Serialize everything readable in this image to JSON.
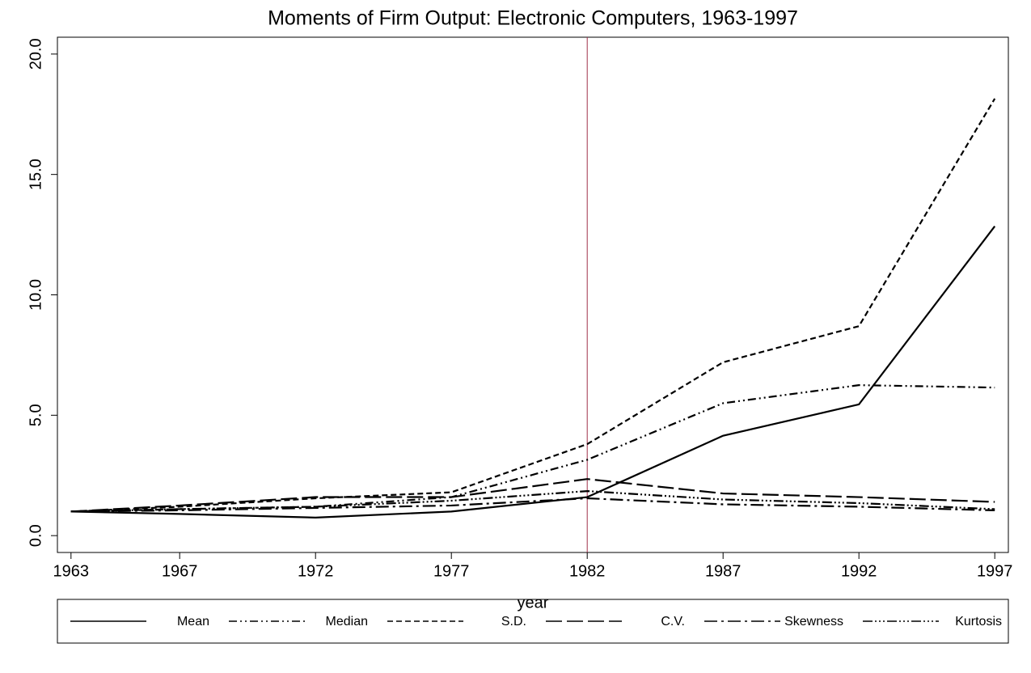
{
  "chart_data": {
    "type": "line",
    "title": "Moments of Firm Output: Electronic Computers, 1963-1997",
    "x_label": "year",
    "x": [
      1963,
      1967,
      1972,
      1977,
      1982,
      1987,
      1992,
      1997
    ],
    "xlim": [
      1962.5,
      1997.5
    ],
    "xticks": [
      1963,
      1967,
      1972,
      1977,
      1982,
      1987,
      1992,
      1997
    ],
    "ylim": [
      -0.7,
      20.7
    ],
    "yticks": [
      {
        "value": 0,
        "label": "0.0"
      },
      {
        "value": 5,
        "label": "5.0"
      },
      {
        "value": 10,
        "label": "10.0"
      },
      {
        "value": 15,
        "label": "15.0"
      },
      {
        "value": 20,
        "label": "20.0"
      }
    ],
    "vline": 1982,
    "vline_color": "#a0304a",
    "legend": "bottom",
    "series": [
      {
        "name": "Mean",
        "color": "#000000",
        "dash": "none",
        "values": [
          1.0,
          0.9,
          0.75,
          1.0,
          1.6,
          4.15,
          5.45,
          12.85
        ]
      },
      {
        "name": "Median",
        "color": "#000000",
        "dash": "10 4 2 4 2 4",
        "values": [
          1.0,
          1.1,
          1.2,
          1.6,
          3.15,
          5.5,
          6.25,
          6.15
        ]
      },
      {
        "name": "S.D.",
        "color": "#000000",
        "dash": "7 4",
        "values": [
          1.0,
          1.2,
          1.55,
          1.8,
          3.8,
          7.2,
          8.7,
          18.15
        ]
      },
      {
        "name": "C.V.",
        "color": "#000000",
        "dash": "20 6",
        "values": [
          1.0,
          1.25,
          1.6,
          1.6,
          2.35,
          1.75,
          1.6,
          1.4
        ]
      },
      {
        "name": "Skewness",
        "color": "#000000",
        "dash": "16 5 3 5",
        "values": [
          1.0,
          1.05,
          1.15,
          1.25,
          1.55,
          1.3,
          1.2,
          1.05
        ]
      },
      {
        "name": "Kurtosis",
        "color": "#000000",
        "dash": "12 3 2 3 2 3 2 3",
        "values": [
          1.0,
          1.1,
          1.2,
          1.45,
          1.85,
          1.5,
          1.35,
          1.1
        ]
      }
    ]
  }
}
